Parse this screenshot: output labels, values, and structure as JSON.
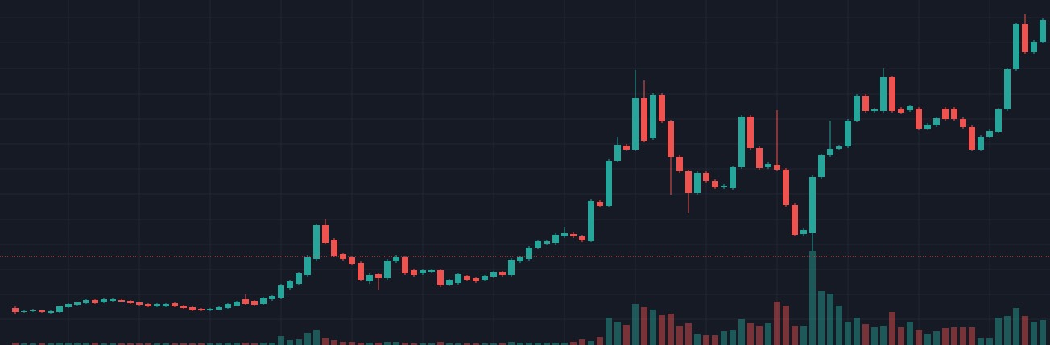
{
  "chart_data": {
    "type": "candlestick",
    "up_color": "#26a69a",
    "down_color": "#ef5350",
    "grid": true,
    "grid_color": "#232735",
    "background": "#161a25",
    "ylim": [
      0,
      429
    ],
    "yticks": [
      32,
      63,
      94,
      125,
      156,
      188,
      219,
      250,
      281,
      312,
      344,
      376,
      407
    ],
    "y2lim": [
      0,
      429
    ],
    "xticks": [
      6,
      14,
      22,
      30,
      38,
      46,
      54,
      62,
      70,
      78,
      86,
      94,
      102,
      110
    ],
    "price_line": 110,
    "price_line_color": "#ef5350",
    "open": [
      46,
      41,
      42,
      43,
      40,
      41,
      47,
      50,
      52,
      56,
      53,
      55,
      56,
      55,
      53,
      51,
      48,
      48,
      52,
      49,
      47,
      45,
      43,
      44,
      46,
      49,
      57,
      55,
      51,
      57,
      59,
      71,
      76,
      87,
      107,
      149,
      131,
      113,
      109,
      102,
      79,
      88,
      83,
      104,
      109,
      93,
      89,
      91,
      93,
      75,
      77,
      86,
      83,
      81,
      85,
      91,
      87,
      104,
      107,
      121,
      126,
      127,
      135,
      138,
      135,
      129,
      178,
      173,
      229,
      248,
      243,
      307,
      257,
      311,
      278,
      234,
      216,
      189,
      214,
      204,
      196,
      195,
      221,
      284,
      245,
      221,
      224,
      218,
      174,
      138,
      139,
      209,
      236,
      244,
      247,
      279,
      310,
      291,
      291,
      333,
      294,
      292,
      294,
      269,
      273,
      294,
      294,
      281,
      271,
      243,
      259,
      265,
      293,
      343,
      399,
      364,
      377
    ],
    "high": [
      48,
      44,
      45,
      44,
      43,
      49,
      52,
      54,
      57,
      57,
      58,
      58,
      57,
      56,
      54,
      52,
      52,
      52,
      53,
      50,
      48,
      46,
      46,
      48,
      52,
      55,
      63,
      56,
      60,
      62,
      76,
      81,
      91,
      112,
      151,
      157,
      133,
      115,
      111,
      104,
      89,
      89,
      107,
      112,
      111,
      95,
      94,
      94,
      94,
      82,
      90,
      87,
      84,
      87,
      92,
      92,
      108,
      111,
      123,
      131,
      131,
      139,
      147,
      140,
      137,
      181,
      180,
      231,
      259,
      250,
      342,
      329,
      313,
      313,
      280,
      236,
      218,
      216,
      216,
      206,
      200,
      223,
      286,
      286,
      247,
      227,
      292,
      220,
      176,
      145,
      211,
      238,
      279,
      249,
      281,
      312,
      312,
      295,
      344,
      335,
      296,
      299,
      296,
      276,
      284,
      296,
      296,
      283,
      273,
      261,
      268,
      295,
      345,
      401,
      411,
      379,
      406
    ],
    "low": [
      38,
      40,
      41,
      40,
      39,
      40,
      46,
      49,
      51,
      51,
      52,
      54,
      53,
      51,
      49,
      47,
      47,
      47,
      47,
      45,
      42,
      42,
      42,
      43,
      45,
      48,
      50,
      49,
      50,
      55,
      57,
      69,
      74,
      85,
      105,
      125,
      109,
      105,
      99,
      79,
      76,
      69,
      81,
      102,
      87,
      85,
      87,
      90,
      72,
      73,
      75,
      79,
      77,
      79,
      83,
      85,
      85,
      102,
      105,
      119,
      124,
      124,
      133,
      133,
      128,
      128,
      171,
      171,
      227,
      241,
      241,
      252,
      255,
      276,
      187,
      214,
      164,
      187,
      202,
      194,
      194,
      193,
      219,
      243,
      218,
      219,
      216,
      172,
      135,
      136,
      117,
      207,
      234,
      242,
      245,
      277,
      289,
      289,
      289,
      289,
      287,
      290,
      267,
      267,
      271,
      279,
      279,
      269,
      241,
      241,
      257,
      263,
      291,
      341,
      362,
      362,
      375
    ],
    "close": [
      41,
      42,
      43,
      41,
      42,
      48,
      51,
      53,
      56,
      52,
      57,
      57,
      54,
      52,
      50,
      48,
      51,
      51,
      48,
      46,
      43,
      43,
      45,
      47,
      51,
      54,
      51,
      50,
      59,
      61,
      74,
      79,
      89,
      109,
      149,
      127,
      111,
      107,
      101,
      81,
      87,
      83,
      105,
      110,
      89,
      87,
      93,
      93,
      74,
      81,
      88,
      81,
      79,
      86,
      91,
      87,
      106,
      109,
      121,
      129,
      129,
      137,
      139,
      135,
      130,
      179,
      173,
      229,
      249,
      243,
      307,
      254,
      311,
      278,
      234,
      216,
      189,
      214,
      204,
      196,
      198,
      221,
      284,
      245,
      220,
      225,
      218,
      174,
      137,
      143,
      209,
      236,
      244,
      247,
      279,
      310,
      291,
      293,
      333,
      291,
      289,
      297,
      269,
      274,
      282,
      281,
      281,
      271,
      243,
      259,
      266,
      293,
      343,
      399,
      364,
      377,
      404
    ],
    "volume": [
      3,
      2,
      2,
      2,
      2,
      3,
      3,
      3,
      3,
      3,
      2,
      2,
      2,
      2,
      2,
      2,
      2,
      2,
      2,
      2,
      2,
      2,
      2,
      2,
      3,
      3,
      3,
      2,
      3,
      3,
      11,
      6,
      7,
      15,
      19,
      9,
      6,
      4,
      4,
      3,
      3,
      3,
      4,
      4,
      3,
      2,
      2,
      2,
      4,
      2,
      2,
      2,
      2,
      2,
      2,
      2,
      4,
      3,
      3,
      3,
      3,
      3,
      3,
      4,
      7,
      5,
      10,
      34,
      29,
      25,
      51,
      47,
      44,
      37,
      39,
      24,
      27,
      14,
      12,
      12,
      17,
      19,
      32,
      27,
      24,
      27,
      54,
      49,
      24,
      24,
      117,
      67,
      64,
      49,
      29,
      34,
      26,
      22,
      24,
      41,
      22,
      29,
      19,
      14,
      17,
      21,
      22,
      22,
      22,
      9,
      9,
      34,
      36,
      46,
      36,
      29,
      31
    ]
  }
}
